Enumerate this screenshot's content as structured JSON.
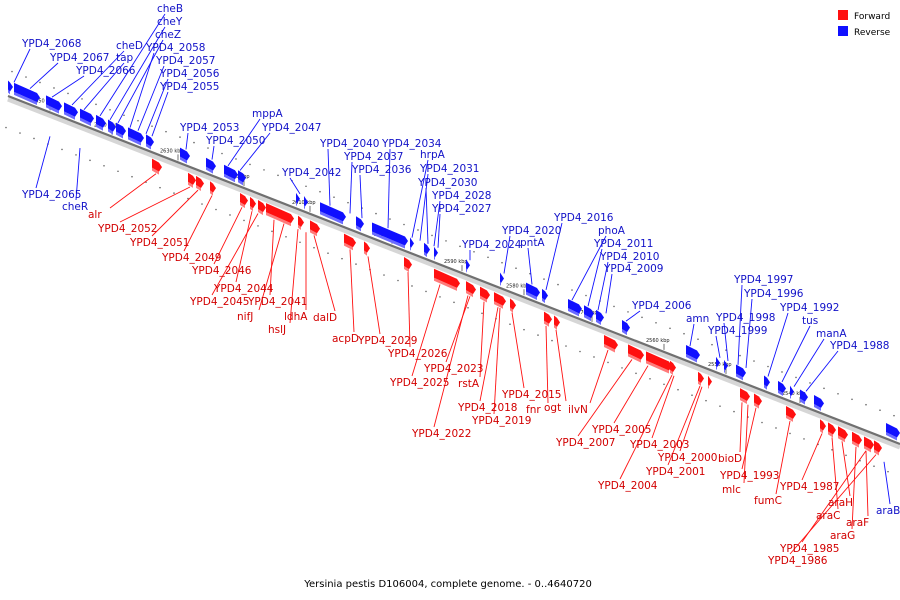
{
  "colors": {
    "forward": "#ff1010",
    "reverse": "#1010ff",
    "forward_label": "#d20000",
    "reverse_label": "#1212c8"
  },
  "legend": {
    "forward": "Forward",
    "reverse": "Reverse"
  },
  "caption": "Yersinia pestis D106004, complete genome. - 0..4640720",
  "ticks": [
    "2650 kbp",
    "2640 kbp",
    "2630 kbp",
    "2620 kbp",
    "2610 kbp",
    "2600 kbp",
    "2590 kbp",
    "2580 kbp",
    "2570 kbp",
    "2560 kbp",
    "2550 kbp",
    "2540 kbp"
  ],
  "reverse_genes": [
    "YPD4_2068",
    "YPD4_2067",
    "YPD4_2066",
    "cheD",
    "tap",
    "cheB",
    "cheY",
    "cheZ",
    "YPD4_2058",
    "YPD4_2057",
    "YPD4_2056",
    "YPD4_2055",
    "YPD4_2053",
    "YPD4_2050",
    "mppA",
    "YPD4_2047",
    "YPD4_2042",
    "YPD4_2040",
    "YPD4_2037",
    "YPD4_2036",
    "YPD4_2034",
    "hrpA",
    "YPD4_2031",
    "YPD4_2030",
    "YPD4_2028",
    "YPD4_2027",
    "YPD4_2024",
    "YPD4_2020",
    "pntA",
    "YPD4_2016",
    "phoA",
    "YPD4_2011",
    "YPD4_2010",
    "YPD4_2009",
    "YPD4_2006",
    "amn",
    "YPD4_1999",
    "YPD4_1998",
    "YPD4_1997",
    "YPD4_1996",
    "YPD4_1992",
    "tus",
    "manA",
    "YPD4_1988",
    "YPD4_2065",
    "cheR",
    "araB"
  ],
  "forward_genes": [
    "alr",
    "YPD4_2052",
    "YPD4_2051",
    "YPD4_2049",
    "YPD4_2046",
    "YPD4_2044",
    "YPD4_2045",
    "YPD4_2041",
    "nifJ",
    "hslJ",
    "ldhA",
    "dalD",
    "acpD",
    "YPD4_2029",
    "YPD4_2026",
    "YPD4_2025",
    "YPD4_2023",
    "rstA",
    "YPD4_2018",
    "YPD4_2019",
    "YPD4_2022",
    "YPD4_2015",
    "fnr",
    "ogt",
    "ilvN",
    "YPD4_2007",
    "YPD4_2005",
    "YPD4_2004",
    "YPD4_2003",
    "YPD4_2001",
    "YPD4_2000",
    "bioD",
    "mlc",
    "YPD4_1993",
    "fumC",
    "YPD4_1987",
    "araC",
    "araH",
    "araG",
    "araF",
    "YPD4_1985",
    "YPD4_1986"
  ]
}
